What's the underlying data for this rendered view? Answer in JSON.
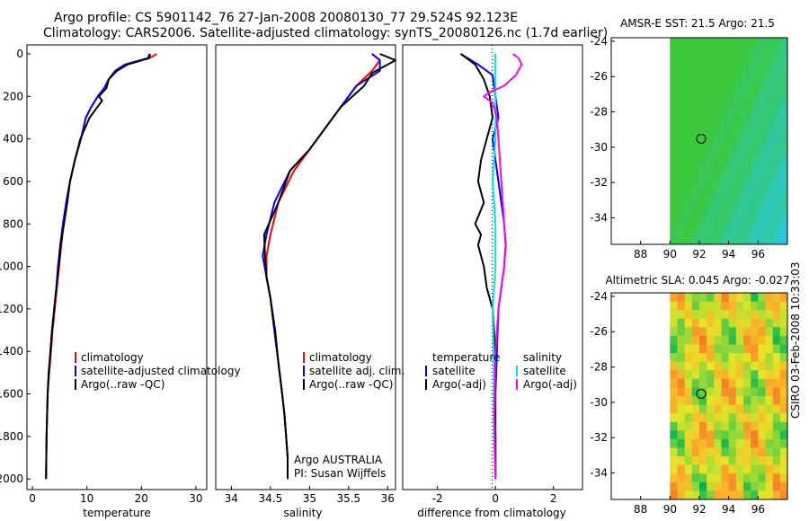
{
  "header": {
    "line1": "Argo profile: CS 5901142_76 27-Jan-2008 20080130_77 29.524S 92.123E",
    "line2": "Climatology: CARS2006. Satellite-adjusted climatology: synTS_20080126.nc (1.7d earlier)"
  },
  "credit": "CSIRO 03-Feb-2008 10:33:03",
  "colors": {
    "climatology": "#ff0000",
    "satellite": "#0000ff",
    "argo": "#000000",
    "sal_sat": "#00e5e5",
    "sal_argo": "#ff00ff"
  },
  "chart_data": [
    {
      "type": "line",
      "id": "temperature",
      "xlabel": "temperature",
      "xlim": [
        -1,
        32
      ],
      "xticks": [
        "0",
        "10",
        "20",
        "30"
      ],
      "ylim": [
        0,
        2050
      ],
      "yticks": [
        "0",
        "200",
        "400",
        "600",
        "800",
        "1000",
        "1200",
        "1400",
        "1600",
        "1800",
        "2000"
      ],
      "grid": false,
      "legend": {
        "entries": [
          "climatology",
          "satellite-adjusted climatology",
          "Argo(..raw -QC)"
        ],
        "position": "lower-right"
      },
      "series": [
        {
          "name": "climatology",
          "color": "#ff0000",
          "x": [
            22.8,
            21.5,
            17,
            15.2,
            14,
            13.2,
            12,
            10.8,
            9.8,
            8.9,
            7.8,
            6.9,
            6.2,
            5.7,
            5.3,
            4.9,
            4.5,
            4.1,
            3.7,
            3.4,
            3.1,
            2.8,
            2.6,
            2.5
          ],
          "y": [
            0,
            20,
            50,
            80,
            120,
            160,
            200,
            250,
            300,
            400,
            500,
            600,
            700,
            800,
            900,
            1000,
            1100,
            1200,
            1300,
            1400,
            1500,
            1600,
            1800,
            2000
          ]
        },
        {
          "name": "satellite-adjusted climatology",
          "color": "#0000ff",
          "x": [
            21.5,
            21.2,
            17,
            15.2,
            14,
            13.2,
            12,
            10.8,
            9.8,
            8.9,
            7.8,
            6.9,
            6.2,
            5.6,
            5.1,
            4.7,
            4.4,
            4.0,
            3.6,
            3.3,
            3.0,
            2.8,
            2.6,
            2.5
          ],
          "y": [
            0,
            20,
            50,
            80,
            120,
            160,
            200,
            250,
            300,
            400,
            500,
            600,
            700,
            800,
            900,
            1000,
            1100,
            1200,
            1300,
            1400,
            1500,
            1600,
            1800,
            2000
          ]
        },
        {
          "name": "Argo(..raw -QC)",
          "color": "#000000",
          "x": [
            21.6,
            21.4,
            17.5,
            15.5,
            14,
            13.6,
            12.2,
            12.8,
            10.5,
            8.8,
            7.8,
            6.9,
            6.4,
            5.8,
            5.2,
            4.8,
            4.4,
            4.0,
            3.6,
            3.3,
            3.0,
            2.8,
            2.6,
            2.5
          ],
          "y": [
            0,
            20,
            50,
            80,
            120,
            160,
            200,
            220,
            300,
            400,
            500,
            600,
            700,
            800,
            900,
            1000,
            1100,
            1200,
            1300,
            1400,
            1500,
            1600,
            1800,
            2000
          ]
        }
      ]
    },
    {
      "type": "line",
      "id": "salinity",
      "xlabel": "salinity",
      "xlim": [
        33.8,
        36.1
      ],
      "xticks": [
        "34",
        "34.5",
        "35",
        "35.5",
        "36"
      ],
      "ylim": [
        0,
        2050
      ],
      "grid": false,
      "legend": {
        "entries": [
          "climatology",
          "satellite adj. clim.",
          "Argo(..raw -QC)"
        ],
        "position": "lower-right"
      },
      "annotation": [
        "Argo AUSTRALIA",
        "PI: Susan Wijffels"
      ],
      "series": [
        {
          "name": "climatology",
          "color": "#ff0000",
          "x": [
            35.8,
            35.9,
            35.8,
            35.6,
            35.4,
            35.2,
            35.0,
            34.8,
            34.6,
            34.5,
            34.45,
            34.45,
            34.5,
            34.55,
            34.6,
            34.65,
            34.68,
            34.7,
            34.72,
            34.72
          ],
          "y": [
            0,
            30,
            80,
            150,
            250,
            350,
            450,
            550,
            700,
            850,
            950,
            1050,
            1150,
            1300,
            1450,
            1600,
            1700,
            1800,
            1900,
            2000
          ]
        },
        {
          "name": "satellite adj. clim.",
          "color": "#0000ff",
          "x": [
            35.8,
            35.9,
            35.9,
            35.6,
            35.4,
            35.2,
            35.0,
            34.75,
            34.55,
            34.45,
            34.4,
            34.45,
            34.5,
            34.55,
            34.6,
            34.65,
            34.68,
            34.7,
            34.72,
            34.72
          ],
          "y": [
            0,
            30,
            80,
            150,
            250,
            350,
            450,
            550,
            700,
            850,
            950,
            1050,
            1150,
            1300,
            1450,
            1600,
            1700,
            1800,
            1900,
            2000
          ]
        },
        {
          "name": "Argo(..raw -QC)",
          "color": "#000000",
          "x": [
            35.9,
            36.1,
            35.8,
            35.7,
            35.4,
            35.2,
            35.0,
            34.75,
            34.6,
            34.42,
            34.43,
            34.45,
            34.5,
            34.56,
            34.6,
            34.65,
            34.68,
            34.7,
            34.72,
            34.72
          ],
          "y": [
            0,
            30,
            90,
            150,
            250,
            350,
            450,
            550,
            700,
            850,
            950,
            1050,
            1150,
            1300,
            1450,
            1600,
            1700,
            1800,
            1900,
            2000
          ]
        }
      ]
    },
    {
      "type": "line",
      "id": "difference",
      "xlabel": "difference from climatology",
      "xlim": [
        -3.2,
        3.0
      ],
      "xticks": [
        "-2",
        "0",
        "2"
      ],
      "ylim": [
        0,
        2050
      ],
      "grid": false,
      "legend": {
        "temperature_title": "temperature",
        "salinity_title": "salinity",
        "entries": [
          "satellite",
          "Argo(-adj)",
          "satellite",
          "Argo(-adj)"
        ],
        "position": "lower-right"
      },
      "series": [
        {
          "name": "temperature satellite",
          "color": "#0000ff",
          "x": [
            -1.2,
            -0.6,
            -0.1,
            0.0,
            0.1,
            -0.1,
            0.0,
            0.1,
            0.2,
            0.3,
            0.35,
            0.3,
            0.2,
            0.1,
            0.05,
            0.0,
            0.0,
            0.0
          ],
          "y": [
            0,
            50,
            100,
            200,
            300,
            400,
            500,
            600,
            700,
            800,
            900,
            1000,
            1100,
            1200,
            1400,
            1600,
            1800,
            2000
          ]
        },
        {
          "name": "temperature Argo(-adj)",
          "color": "#000000",
          "x": [
            -1.2,
            -0.7,
            -0.4,
            -0.2,
            -0.1,
            -0.3,
            -0.5,
            -0.6,
            -0.4,
            -0.7,
            -0.5,
            -0.6,
            -0.4,
            -0.3,
            -0.1,
            0.0,
            -0.05,
            0.0,
            0.0
          ],
          "y": [
            0,
            50,
            120,
            200,
            300,
            400,
            500,
            600,
            700,
            800,
            850,
            900,
            1000,
            1100,
            1200,
            1400,
            1600,
            1800,
            2000
          ]
        },
        {
          "name": "salinity satellite",
          "color": "#00e5e5",
          "x": [
            0.0,
            0.0,
            0.0,
            0.0,
            -0.1,
            0.0,
            0.0,
            -0.1,
            -0.05,
            -0.05,
            0.0
          ],
          "y": [
            0,
            100,
            200,
            400,
            600,
            800,
            1000,
            1200,
            1500,
            1800,
            2000
          ]
        },
        {
          "name": "salinity Argo(-adj)",
          "color": "#ff00ff",
          "x": [
            0.6,
            0.8,
            0.9,
            0.7,
            0.3,
            -0.2,
            -0.4,
            -0.1,
            0.05,
            0.1,
            0.2,
            0.3,
            0.35,
            0.3,
            0.2,
            0.1,
            0.0,
            -0.05,
            0.0
          ],
          "y": [
            0,
            20,
            50,
            100,
            150,
            180,
            200,
            230,
            300,
            400,
            600,
            800,
            900,
            1000,
            1100,
            1200,
            1400,
            1700,
            2000
          ]
        }
      ]
    },
    {
      "type": "heatmap",
      "id": "sst_map",
      "title": "AMSR-E SST: 21.5 Argo: 21.5",
      "xlim": [
        86,
        98
      ],
      "ylim": [
        -35.5,
        -23.8
      ],
      "xticks": [
        "88",
        "90",
        "92",
        "94",
        "96"
      ],
      "yticks": [
        "-24",
        "-26",
        "-28",
        "-30",
        "-32",
        "-34"
      ],
      "data_lon_range": [
        90,
        98
      ],
      "marker": {
        "lon": 92.123,
        "lat": -29.524
      }
    },
    {
      "type": "heatmap",
      "id": "sla_map",
      "title": "Altimetric SLA: 0.045 Argo: -0.027",
      "xlim": [
        86,
        98
      ],
      "ylim": [
        -35.5,
        -23.8
      ],
      "xticks": [
        "88",
        "90",
        "92",
        "94",
        "96"
      ],
      "yticks": [
        "-24",
        "-26",
        "-28",
        "-30",
        "-32",
        "-34"
      ],
      "data_lon_range": [
        90,
        98
      ],
      "marker": {
        "lon": 92.123,
        "lat": -29.524
      }
    }
  ]
}
